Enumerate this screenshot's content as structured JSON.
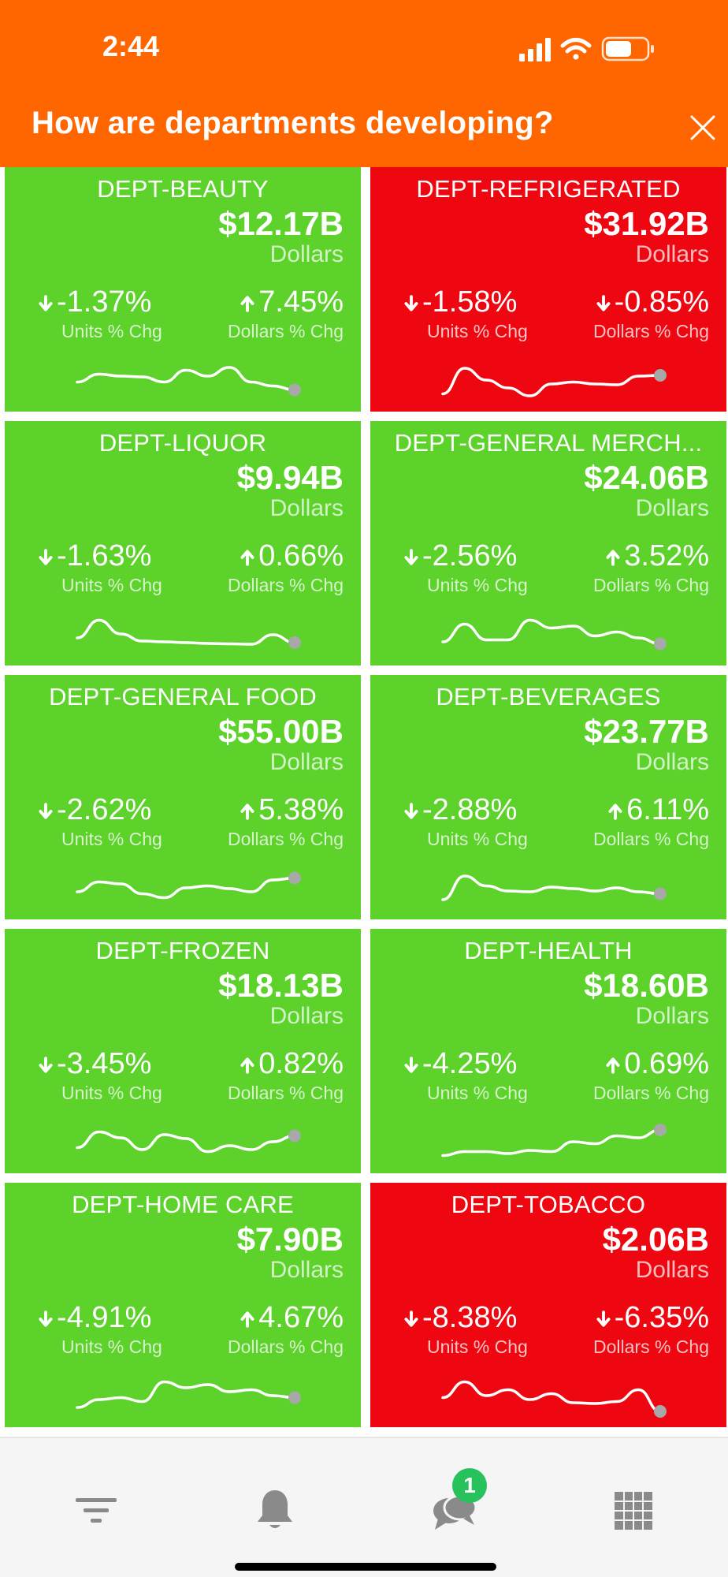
{
  "status_bar": {
    "time": "2:44"
  },
  "header": {
    "title": "How are departments developing?"
  },
  "departments": [
    {
      "name": "DEPT-BEAUTY",
      "value": "$12.17B",
      "value_label": "Dollars",
      "units_pct": "-1.37%",
      "units_dir": "down",
      "units_label": "Units % Chg",
      "dollars_pct": "7.45%",
      "dollars_dir": "up",
      "dollars_label": "Dollars % Chg",
      "status": "up",
      "trend": [
        0.55,
        0.75,
        0.7,
        0.68,
        0.55,
        0.85,
        0.7,
        0.92,
        0.55,
        0.45,
        0.35
      ]
    },
    {
      "name": "DEPT-REFRIGERATED",
      "value": "$31.92B",
      "value_label": "Dollars",
      "units_pct": "-1.58%",
      "units_dir": "down",
      "units_label": "Units % Chg",
      "dollars_pct": "-0.85%",
      "dollars_dir": "down",
      "dollars_label": "Dollars % Chg",
      "status": "down",
      "trend": [
        0.25,
        0.9,
        0.6,
        0.4,
        0.2,
        0.5,
        0.55,
        0.5,
        0.48,
        0.7,
        0.72
      ]
    },
    {
      "name": "DEPT-LIQUOR",
      "value": "$9.94B",
      "value_label": "Dollars",
      "units_pct": "-1.63%",
      "units_dir": "down",
      "units_label": "Units % Chg",
      "dollars_pct": "0.66%",
      "dollars_dir": "up",
      "dollars_label": "Dollars % Chg",
      "status": "up",
      "trend": [
        0.5,
        0.95,
        0.6,
        0.42,
        0.4,
        0.38,
        0.36,
        0.35,
        0.34,
        0.58,
        0.38
      ]
    },
    {
      "name": "DEPT-GENERAL MERCH...",
      "value": "$24.06B",
      "value_label": "Dollars",
      "units_pct": "-2.56%",
      "units_dir": "down",
      "units_label": "Units % Chg",
      "dollars_pct": "3.52%",
      "dollars_dir": "up",
      "dollars_label": "Dollars % Chg",
      "status": "up",
      "trend": [
        0.4,
        0.85,
        0.45,
        0.45,
        0.95,
        0.75,
        0.8,
        0.55,
        0.65,
        0.5,
        0.35
      ]
    },
    {
      "name": "DEPT-GENERAL FOOD",
      "value": "$55.00B",
      "value_label": "Dollars",
      "units_pct": "-2.62%",
      "units_dir": "down",
      "units_label": "Units % Chg",
      "dollars_pct": "5.38%",
      "dollars_dir": "up",
      "dollars_label": "Dollars % Chg",
      "status": "up",
      "trend": [
        0.5,
        0.75,
        0.7,
        0.45,
        0.35,
        0.6,
        0.65,
        0.58,
        0.5,
        0.8,
        0.85
      ]
    },
    {
      "name": "DEPT-BEVERAGES",
      "value": "$23.77B",
      "value_label": "Dollars",
      "units_pct": "-2.88%",
      "units_dir": "down",
      "units_label": "Units % Chg",
      "dollars_pct": "6.11%",
      "dollars_dir": "up",
      "dollars_label": "Dollars % Chg",
      "status": "up",
      "trend": [
        0.3,
        0.9,
        0.65,
        0.52,
        0.5,
        0.62,
        0.58,
        0.52,
        0.6,
        0.5,
        0.45
      ]
    },
    {
      "name": "DEPT-FROZEN",
      "value": "$18.13B",
      "value_label": "Dollars",
      "units_pct": "-3.45%",
      "units_dir": "down",
      "units_label": "Units % Chg",
      "dollars_pct": "0.82%",
      "dollars_dir": "up",
      "dollars_label": "Dollars % Chg",
      "status": "up",
      "trend": [
        0.45,
        0.85,
        0.7,
        0.4,
        0.78,
        0.68,
        0.35,
        0.5,
        0.4,
        0.6,
        0.75
      ]
    },
    {
      "name": "DEPT-HEALTH",
      "value": "$18.60B",
      "value_label": "Dollars",
      "units_pct": "-4.25%",
      "units_dir": "down",
      "units_label": "Units % Chg",
      "dollars_pct": "0.69%",
      "dollars_dir": "up",
      "dollars_label": "Dollars % Chg",
      "status": "up",
      "trend": [
        0.25,
        0.35,
        0.35,
        0.3,
        0.38,
        0.35,
        0.6,
        0.55,
        0.75,
        0.7,
        0.9
      ]
    },
    {
      "name": "DEPT-HOME CARE",
      "value": "$7.90B",
      "value_label": "Dollars",
      "units_pct": "-4.91%",
      "units_dir": "down",
      "units_label": "Units % Chg",
      "dollars_pct": "4.67%",
      "dollars_dir": "up",
      "dollars_label": "Dollars % Chg",
      "status": "up",
      "trend": [
        0.3,
        0.5,
        0.55,
        0.45,
        0.95,
        0.8,
        0.88,
        0.7,
        0.75,
        0.6,
        0.55
      ]
    },
    {
      "name": "DEPT-TOBACCO",
      "value": "$2.06B",
      "value_label": "Dollars",
      "units_pct": "-8.38%",
      "units_dir": "down",
      "units_label": "Units % Chg",
      "dollars_pct": "-6.35%",
      "dollars_dir": "down",
      "dollars_label": "Dollars % Chg",
      "status": "down",
      "trend": [
        0.55,
        0.95,
        0.6,
        0.75,
        0.5,
        0.65,
        0.42,
        0.4,
        0.45,
        0.75,
        0.2
      ]
    }
  ],
  "tabbar": {
    "items": [
      "filter-icon",
      "bell-icon",
      "chat-icon",
      "grid-icon"
    ],
    "chat_badge": "1"
  },
  "colors": {
    "header": "#ff6600",
    "up": "#5cd22b",
    "down": "#ee0711",
    "spark_dot": "#a8a8a8"
  }
}
